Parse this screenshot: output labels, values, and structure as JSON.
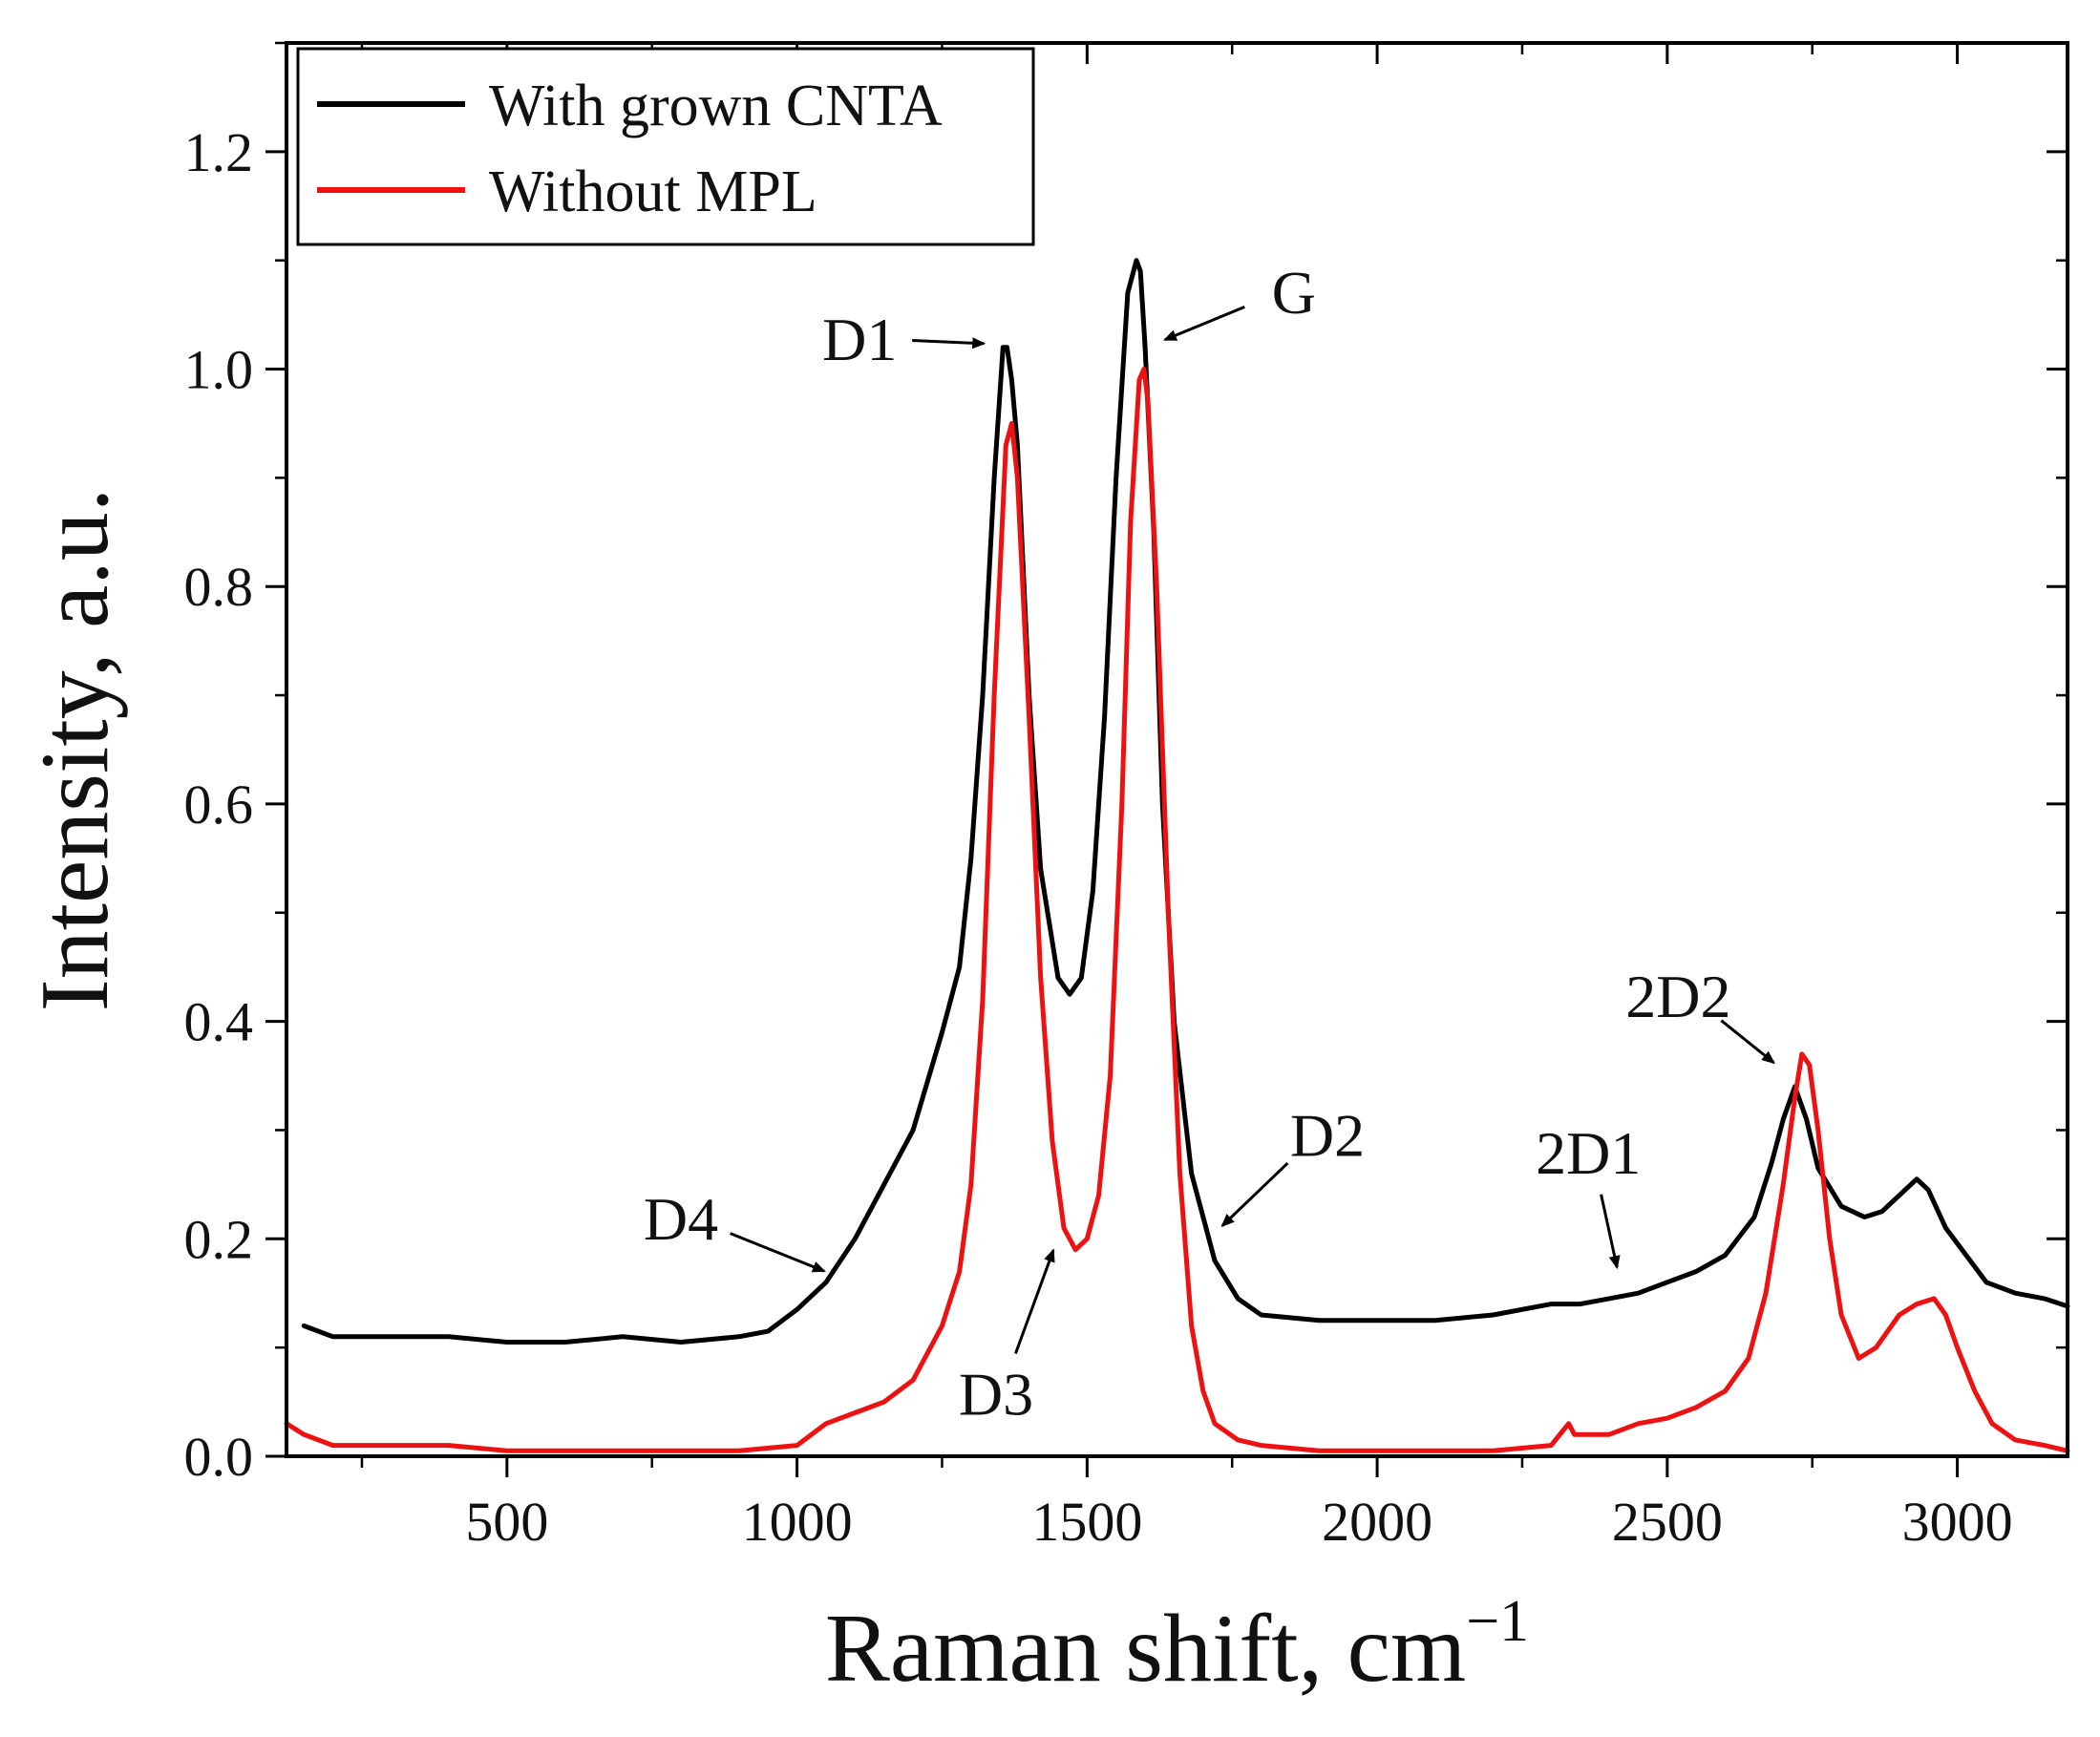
{
  "chart_data": {
    "type": "line",
    "xlabel": "Raman shift, cm",
    "xlabel_sup": "−1",
    "ylabel": "Intensity, a.u.",
    "xlim": [
      120,
      3190
    ],
    "ylim": [
      0.0,
      1.3
    ],
    "x_ticks": [
      500,
      1000,
      1500,
      2000,
      2500,
      3000
    ],
    "x_tick_labels": [
      "500",
      "1000",
      "1500",
      "2000",
      "2500",
      "3000"
    ],
    "y_ticks": [
      0.0,
      0.2,
      0.4,
      0.6,
      0.8,
      1.0,
      1.2
    ],
    "y_tick_labels": [
      "0.0",
      "0.2",
      "0.4",
      "0.6",
      "0.8",
      "1.0",
      "1.2"
    ],
    "grid": false,
    "legend_position": "top-left",
    "series": [
      {
        "name": "With grown CNTA",
        "color": "#000000",
        "x": [
          150,
          200,
          300,
          400,
          500,
          600,
          700,
          800,
          900,
          950,
          1000,
          1050,
          1100,
          1150,
          1200,
          1250,
          1280,
          1300,
          1320,
          1340,
          1355,
          1362,
          1370,
          1380,
          1400,
          1420,
          1450,
          1470,
          1490,
          1510,
          1530,
          1550,
          1570,
          1585,
          1592,
          1600,
          1615,
          1630,
          1650,
          1680,
          1720,
          1760,
          1800,
          1900,
          2000,
          2100,
          2200,
          2300,
          2330,
          2350,
          2400,
          2450,
          2500,
          2550,
          2600,
          2650,
          2680,
          2700,
          2720,
          2740,
          2760,
          2800,
          2840,
          2870,
          2900,
          2930,
          2950,
          2980,
          3050,
          3100,
          3150,
          3190
        ],
        "y": [
          0.12,
          0.11,
          0.11,
          0.11,
          0.105,
          0.105,
          0.11,
          0.105,
          0.11,
          0.115,
          0.135,
          0.16,
          0.2,
          0.25,
          0.3,
          0.39,
          0.45,
          0.55,
          0.7,
          0.9,
          1.02,
          1.02,
          0.99,
          0.93,
          0.7,
          0.54,
          0.44,
          0.425,
          0.44,
          0.52,
          0.68,
          0.9,
          1.07,
          1.1,
          1.09,
          1.02,
          0.85,
          0.6,
          0.4,
          0.26,
          0.18,
          0.145,
          0.13,
          0.125,
          0.125,
          0.125,
          0.13,
          0.14,
          0.14,
          0.14,
          0.145,
          0.15,
          0.16,
          0.17,
          0.185,
          0.22,
          0.27,
          0.31,
          0.34,
          0.31,
          0.265,
          0.23,
          0.22,
          0.225,
          0.24,
          0.255,
          0.245,
          0.21,
          0.16,
          0.15,
          0.145,
          0.138
        ]
      },
      {
        "name": "Without MPL",
        "color": "#ee1111",
        "x": [
          120,
          150,
          200,
          300,
          400,
          500,
          600,
          700,
          800,
          900,
          1000,
          1050,
          1100,
          1150,
          1200,
          1250,
          1280,
          1300,
          1320,
          1340,
          1360,
          1370,
          1380,
          1400,
          1420,
          1440,
          1460,
          1480,
          1500,
          1520,
          1540,
          1560,
          1575,
          1590,
          1598,
          1605,
          1620,
          1640,
          1660,
          1680,
          1700,
          1720,
          1760,
          1800,
          1900,
          2000,
          2100,
          2200,
          2300,
          2330,
          2340,
          2400,
          2450,
          2500,
          2550,
          2600,
          2640,
          2670,
          2700,
          2720,
          2732,
          2745,
          2760,
          2780,
          2800,
          2830,
          2860,
          2900,
          2930,
          2960,
          2980,
          3000,
          3030,
          3060,
          3100,
          3150,
          3190
        ],
        "y": [
          0.03,
          0.02,
          0.01,
          0.01,
          0.01,
          0.005,
          0.005,
          0.005,
          0.005,
          0.005,
          0.01,
          0.03,
          0.04,
          0.05,
          0.07,
          0.12,
          0.17,
          0.25,
          0.42,
          0.7,
          0.93,
          0.95,
          0.9,
          0.68,
          0.44,
          0.29,
          0.21,
          0.19,
          0.2,
          0.24,
          0.35,
          0.6,
          0.86,
          0.99,
          1.0,
          0.97,
          0.8,
          0.5,
          0.26,
          0.12,
          0.06,
          0.03,
          0.015,
          0.01,
          0.005,
          0.005,
          0.005,
          0.005,
          0.01,
          0.03,
          0.02,
          0.02,
          0.03,
          0.035,
          0.045,
          0.06,
          0.09,
          0.15,
          0.25,
          0.33,
          0.37,
          0.36,
          0.3,
          0.2,
          0.13,
          0.09,
          0.1,
          0.13,
          0.14,
          0.145,
          0.13,
          0.1,
          0.06,
          0.03,
          0.015,
          0.01,
          0.005
        ]
      }
    ],
    "annotations": [
      {
        "text": "D1",
        "x": 1355,
        "y": 1.02
      },
      {
        "text": "G",
        "x": 1598,
        "y": 1.02
      },
      {
        "text": "D4",
        "x": 1060,
        "y": 0.165
      },
      {
        "text": "D3",
        "x": 1455,
        "y": 0.2
      },
      {
        "text": "D2",
        "x": 1720,
        "y": 0.205
      },
      {
        "text": "2D1",
        "x": 2420,
        "y": 0.165
      },
      {
        "text": "2D2",
        "x": 2700,
        "y": 0.355
      }
    ]
  }
}
